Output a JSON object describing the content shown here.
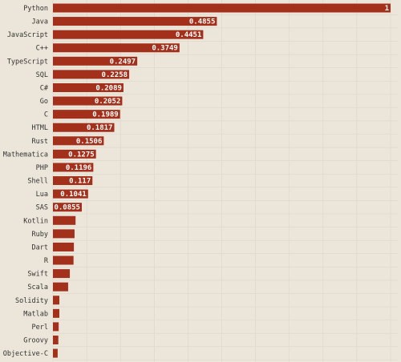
{
  "chart_data": {
    "type": "bar",
    "orientation": "horizontal",
    "categories": [
      "Python",
      "Java",
      "JavaScript",
      "C++",
      "TypeScript",
      "SQL",
      "C#",
      "Go",
      "C",
      "HTML",
      "Rust",
      "Mathematica",
      "PHP",
      "Shell",
      "Lua",
      "SAS",
      "Kotlin",
      "Ruby",
      "Dart",
      "R",
      "Swift",
      "Scala",
      "Solidity",
      "Matlab",
      "Perl",
      "Groovy",
      "Objective-C"
    ],
    "values": [
      1,
      0.4855,
      0.4451,
      0.3749,
      0.2497,
      0.2258,
      0.2089,
      0.2052,
      0.1989,
      0.1817,
      0.1506,
      0.1275,
      0.1196,
      0.117,
      0.1041,
      0.0855,
      0.067,
      0.064,
      0.062,
      0.061,
      0.05,
      0.045,
      0.019,
      0.019,
      0.017,
      0.016,
      0.014
    ],
    "value_labels": [
      "1",
      "0.4855",
      "0.4451",
      "0.3749",
      "0.2497",
      "0.2258",
      "0.2089",
      "0.2052",
      "0.1989",
      "0.1817",
      "0.1506",
      "0.1275",
      "0.1196",
      "0.117",
      "0.1041",
      "0.0855",
      null,
      null,
      null,
      null,
      null,
      null,
      null,
      null,
      null,
      null,
      null
    ],
    "color": "#a2301b",
    "xlim": [
      0,
      1
    ]
  }
}
